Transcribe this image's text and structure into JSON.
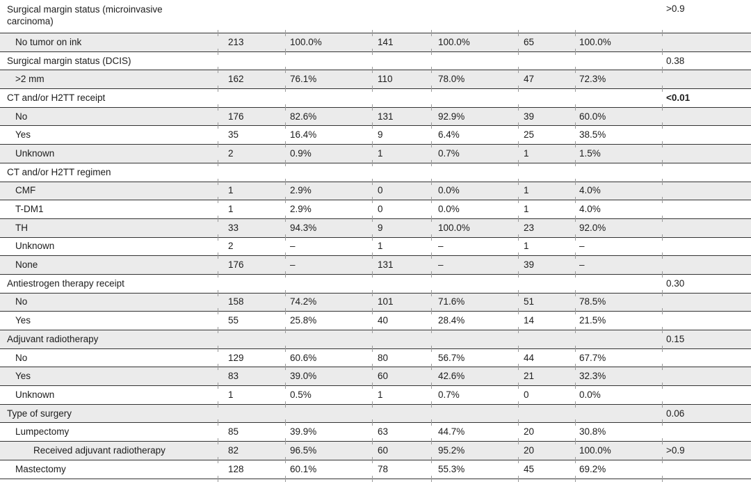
{
  "page": {
    "background_color": "#ffffff",
    "text_color": "#1c1c1c"
  },
  "table": {
    "style": {
      "shaded_row_color": "#ebebeb",
      "rule_color": "#323232",
      "tick_color": "#9a9a9a"
    },
    "column_kinds": [
      "characteristic",
      "count",
      "percent",
      "count",
      "percent",
      "count",
      "percent",
      "p_value"
    ],
    "rows": [
      {
        "label": "Surgical margin status (microinvasive\ncarcinoma)",
        "indent": 0,
        "n1": "",
        "pct1": "",
        "n2": "",
        "pct2": "",
        "n3": "",
        "pct3": "",
        "p": ">0.9"
      },
      {
        "label": "No tumor on ink",
        "indent": 1,
        "n1": "213",
        "pct1": "100.0%",
        "n2": "141",
        "pct2": "100.0%",
        "n3": "65",
        "pct3": "100.0%",
        "p": ""
      },
      {
        "label": "Surgical margin status (DCIS)",
        "indent": 0,
        "n1": "",
        "pct1": "",
        "n2": "",
        "pct2": "",
        "n3": "",
        "pct3": "",
        "p": "0.38"
      },
      {
        "label": ">2 mm",
        "indent": 1,
        "n1": "162",
        "pct1": "76.1%",
        "n2": "110",
        "pct2": "78.0%",
        "n3": "47",
        "pct3": "72.3%",
        "p": ""
      },
      {
        "label": "CT and/or H2TT receipt",
        "indent": 0,
        "n1": "",
        "pct1": "",
        "n2": "",
        "pct2": "",
        "n3": "",
        "pct3": "",
        "p": "<0.01",
        "p_bold": true
      },
      {
        "label": "No",
        "indent": 1,
        "n1": "176",
        "pct1": "82.6%",
        "n2": "131",
        "pct2": "92.9%",
        "n3": "39",
        "pct3": "60.0%",
        "p": ""
      },
      {
        "label": "Yes",
        "indent": 1,
        "n1": "35",
        "pct1": "16.4%",
        "n2": "9",
        "pct2": "6.4%",
        "n3": "25",
        "pct3": "38.5%",
        "p": ""
      },
      {
        "label": "Unknown",
        "indent": 1,
        "n1": "2",
        "pct1": "0.9%",
        "n2": "1",
        "pct2": "0.7%",
        "n3": "1",
        "pct3": "1.5%",
        "p": ""
      },
      {
        "label": "CT and/or H2TT regimen",
        "indent": 0,
        "n1": "",
        "pct1": "",
        "n2": "",
        "pct2": "",
        "n3": "",
        "pct3": "",
        "p": ""
      },
      {
        "label": "CMF",
        "indent": 1,
        "n1": "1",
        "pct1": "2.9%",
        "n2": "0",
        "pct2": "0.0%",
        "n3": "1",
        "pct3": "4.0%",
        "p": ""
      },
      {
        "label": "T-DM1",
        "indent": 1,
        "n1": "1",
        "pct1": "2.9%",
        "n2": "0",
        "pct2": "0.0%",
        "n3": "1",
        "pct3": "4.0%",
        "p": ""
      },
      {
        "label": "TH",
        "indent": 1,
        "n1": "33",
        "pct1": "94.3%",
        "n2": "9",
        "pct2": "100.0%",
        "n3": "23",
        "pct3": "92.0%",
        "p": ""
      },
      {
        "label": "Unknown",
        "indent": 1,
        "n1": "2",
        "pct1": "–",
        "n2": "1",
        "pct2": "–",
        "n3": "1",
        "pct3": "–",
        "p": ""
      },
      {
        "label": "None",
        "indent": 1,
        "n1": "176",
        "pct1": "–",
        "n2": "131",
        "pct2": "–",
        "n3": "39",
        "pct3": "–",
        "p": ""
      },
      {
        "label": "Antiestrogen therapy receipt",
        "indent": 0,
        "n1": "",
        "pct1": "",
        "n2": "",
        "pct2": "",
        "n3": "",
        "pct3": "",
        "p": "0.30"
      },
      {
        "label": "No",
        "indent": 1,
        "n1": "158",
        "pct1": "74.2%",
        "n2": "101",
        "pct2": "71.6%",
        "n3": "51",
        "pct3": "78.5%",
        "p": ""
      },
      {
        "label": "Yes",
        "indent": 1,
        "n1": "55",
        "pct1": "25.8%",
        "n2": "40",
        "pct2": "28.4%",
        "n3": "14",
        "pct3": "21.5%",
        "p": ""
      },
      {
        "label": "Adjuvant radiotherapy",
        "indent": 0,
        "n1": "",
        "pct1": "",
        "n2": "",
        "pct2": "",
        "n3": "",
        "pct3": "",
        "p": "0.15"
      },
      {
        "label": "No",
        "indent": 1,
        "n1": "129",
        "pct1": "60.6%",
        "n2": "80",
        "pct2": "56.7%",
        "n3": "44",
        "pct3": "67.7%",
        "p": ""
      },
      {
        "label": "Yes",
        "indent": 1,
        "n1": "83",
        "pct1": "39.0%",
        "n2": "60",
        "pct2": "42.6%",
        "n3": "21",
        "pct3": "32.3%",
        "p": ""
      },
      {
        "label": "Unknown",
        "indent": 1,
        "n1": "1",
        "pct1": "0.5%",
        "n2": "1",
        "pct2": "0.7%",
        "n3": "0",
        "pct3": "0.0%",
        "p": ""
      },
      {
        "label": "Type of surgery",
        "indent": 0,
        "n1": "",
        "pct1": "",
        "n2": "",
        "pct2": "",
        "n3": "",
        "pct3": "",
        "p": "0.06"
      },
      {
        "label": "Lumpectomy",
        "indent": 1,
        "n1": "85",
        "pct1": "39.9%",
        "n2": "63",
        "pct2": "44.7%",
        "n3": "20",
        "pct3": "30.8%",
        "p": ""
      },
      {
        "label": "Received adjuvant radiotherapy",
        "indent": 2,
        "n1": "82",
        "pct1": "96.5%",
        "n2": "60",
        "pct2": "95.2%",
        "n3": "20",
        "pct3": "100.0%",
        "p": ">0.9"
      },
      {
        "label": "Mastectomy",
        "indent": 1,
        "n1": "128",
        "pct1": "60.1%",
        "n2": "78",
        "pct2": "55.3%",
        "n3": "45",
        "pct3": "69.2%",
        "p": ""
      }
    ]
  }
}
